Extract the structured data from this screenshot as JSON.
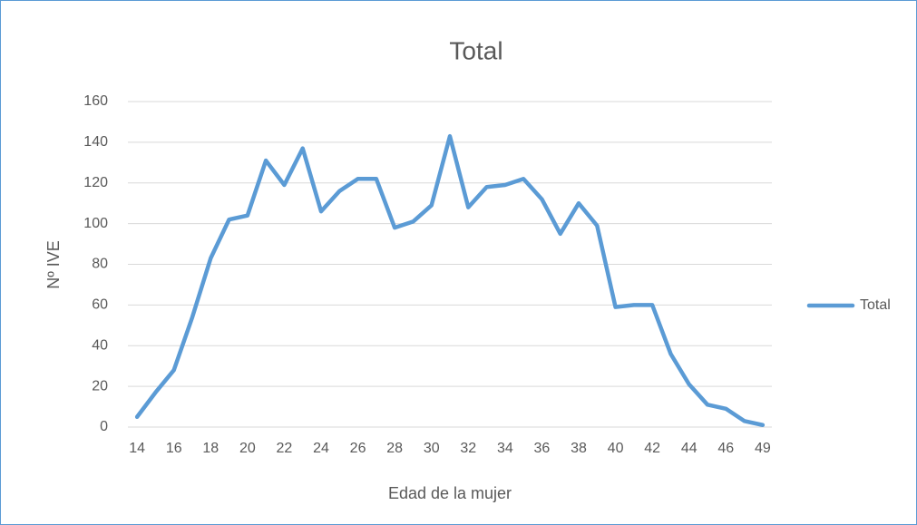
{
  "chart_data": {
    "type": "line",
    "title": "Total",
    "x_label": "Edad de la mujer",
    "y_label": "Nº IVE",
    "categories": [
      14,
      null,
      16,
      null,
      18,
      null,
      20,
      null,
      22,
      null,
      24,
      null,
      26,
      null,
      28,
      null,
      30,
      null,
      32,
      null,
      34,
      null,
      36,
      null,
      38,
      null,
      40,
      null,
      42,
      null,
      44,
      null,
      46,
      null,
      49
    ],
    "series": [
      {
        "name": "Total",
        "color": "#5b9bd5",
        "values": [
          5,
          17,
          28,
          54,
          83,
          102,
          104,
          131,
          119,
          137,
          106,
          116,
          122,
          122,
          98,
          101,
          109,
          143,
          108,
          118,
          119,
          122,
          112,
          95,
          110,
          99,
          59,
          60,
          60,
          36,
          21,
          11,
          9,
          3,
          1
        ]
      }
    ],
    "ylim": [
      0,
      160
    ],
    "yticks": [
      0,
      20,
      40,
      60,
      80,
      100,
      120,
      140,
      160
    ],
    "grid": true,
    "legend": "right"
  }
}
